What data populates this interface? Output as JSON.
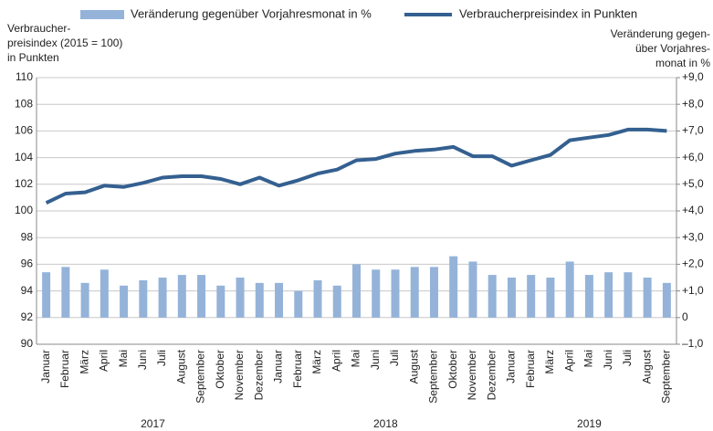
{
  "chart_data": {
    "type": "bar_line",
    "y_label": [
      "Verbraucher-",
      "preisindex (2015 = 100)",
      "in Punkten"
    ],
    "y2_label": [
      "Veränderung gegen-",
      "über Vorjahres-",
      "monat in %"
    ],
    "categories": [
      "Januar",
      "Februar",
      "März",
      "April",
      "Mai",
      "Juni",
      "Juli",
      "August",
      "September",
      "Oktober",
      "November",
      "Dezember",
      "Januar",
      "Februar",
      "März",
      "April",
      "Mai",
      "Juni",
      "Juli",
      "August",
      "September",
      "Oktober",
      "November",
      "Dezember",
      "Januar",
      "Februar",
      "März",
      "April",
      "Mai",
      "Juni",
      "Juli",
      "August",
      "September"
    ],
    "groups": [
      {
        "label": "2017",
        "span": [
          0,
          11
        ]
      },
      {
        "label": "2018",
        "span": [
          12,
          23
        ]
      },
      {
        "label": "2019",
        "span": [
          24,
          32
        ]
      }
    ],
    "series": [
      {
        "name": "Veränderung gegenüber Vorjahresmonat in %",
        "kind": "bar",
        "axis": "y2",
        "color": "#95b3d9",
        "values": [
          1.7,
          1.9,
          1.3,
          1.8,
          1.2,
          1.4,
          1.5,
          1.6,
          1.6,
          1.2,
          1.5,
          1.3,
          1.3,
          1.0,
          1.4,
          1.2,
          2.0,
          1.8,
          1.8,
          1.9,
          1.9,
          2.3,
          2.1,
          1.6,
          1.5,
          1.6,
          1.5,
          2.1,
          1.6,
          1.7,
          1.7,
          1.5,
          1.3
        ]
      },
      {
        "name": "Verbraucherpreisindex in Punkten",
        "kind": "line",
        "axis": "y",
        "color": "#346090",
        "values": [
          100.6,
          101.3,
          101.4,
          101.9,
          101.8,
          102.1,
          102.5,
          102.6,
          102.6,
          102.4,
          102.0,
          102.5,
          101.9,
          102.3,
          102.8,
          103.1,
          103.8,
          103.9,
          104.3,
          104.5,
          104.6,
          104.8,
          104.1,
          104.1,
          103.4,
          103.8,
          104.2,
          105.3,
          105.5,
          105.7,
          106.1,
          106.1,
          106.0
        ]
      }
    ],
    "ylim": [
      90,
      110
    ],
    "yticks": [
      90,
      92,
      94,
      96,
      98,
      100,
      102,
      104,
      106,
      108,
      110
    ],
    "y2lim": [
      -1,
      9
    ],
    "y2ticks": [
      {
        "value": -1,
        "label": "–1,0"
      },
      0,
      {
        "value": 1,
        "label": "+1,0"
      },
      {
        "value": 2,
        "label": "+2,0"
      },
      {
        "value": 3,
        "label": "+3,0"
      },
      {
        "value": 4,
        "label": "+4,0"
      },
      {
        "value": 5,
        "label": "+5,0"
      },
      {
        "value": 6,
        "label": "+6,0"
      },
      {
        "value": 7,
        "label": "+7,0"
      },
      {
        "value": 8,
        "label": "+8,0"
      },
      {
        "value": 9,
        "label": "+9,0"
      }
    ],
    "grid": true
  }
}
